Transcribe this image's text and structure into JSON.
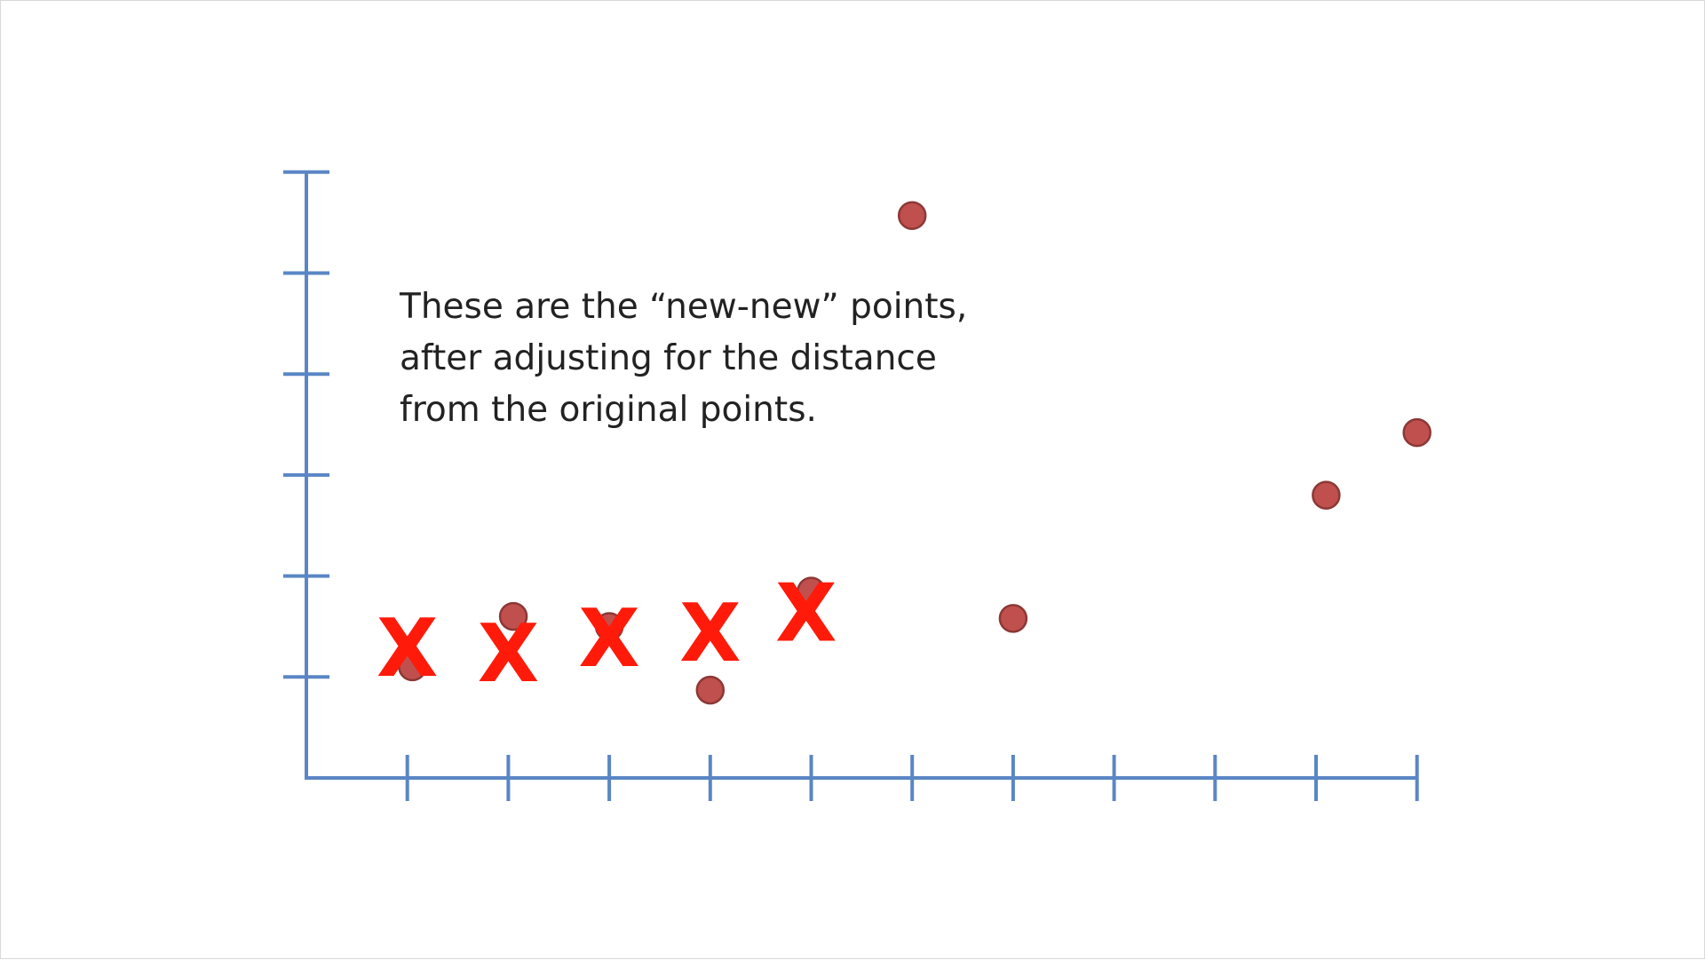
{
  "annotation": {
    "lines": [
      "These are the “new-new” points,",
      "after adjusting for the distance",
      "from the original points."
    ]
  },
  "chart_data": {
    "type": "scatter",
    "title": "",
    "xlabel": "",
    "ylabel": "",
    "xlim": [
      0,
      11
    ],
    "ylim": [
      0,
      6
    ],
    "x_ticks": [
      1,
      2,
      3,
      4,
      5,
      6,
      7,
      8,
      9,
      10,
      11
    ],
    "y_ticks": [
      1,
      2,
      3,
      4,
      5,
      6
    ],
    "tick_labels_shown": false,
    "grid": false,
    "colors": {
      "axis": "#5a86c5",
      "points": "#c0504d",
      "x_markers": "#ff1a0a"
    },
    "series": [
      {
        "marker": "circle",
        "points": [
          {
            "x": 1.05,
            "y": 1.1
          },
          {
            "x": 2.05,
            "y": 1.6
          },
          {
            "x": 3.0,
            "y": 1.5
          },
          {
            "x": 4.0,
            "y": 0.87
          },
          {
            "x": 5.0,
            "y": 1.85
          },
          {
            "x": 6.0,
            "y": 5.57
          },
          {
            "x": 7.0,
            "y": 1.58
          },
          {
            "x": 10.1,
            "y": 2.8
          },
          {
            "x": 11.0,
            "y": 3.42
          }
        ]
      },
      {
        "marker": "X",
        "label_char": "X",
        "points": [
          {
            "x": 1.0,
            "y": 1.3
          },
          {
            "x": 2.0,
            "y": 1.25
          },
          {
            "x": 3.0,
            "y": 1.4
          },
          {
            "x": 4.0,
            "y": 1.45
          },
          {
            "x": 4.95,
            "y": 1.65
          }
        ]
      }
    ]
  }
}
